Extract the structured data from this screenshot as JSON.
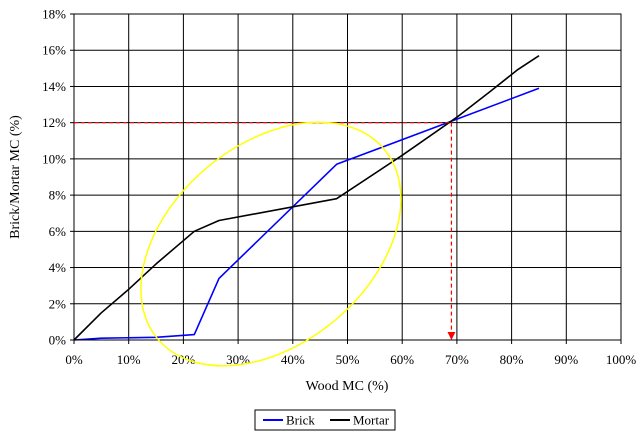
{
  "chart_data": {
    "type": "line",
    "xlabel": "Wood MC (%)",
    "ylabel": "Brick/Mortar MC (%)",
    "xlim": [
      0,
      100
    ],
    "ylim": [
      0,
      18
    ],
    "x_ticks": [
      0,
      10,
      20,
      30,
      40,
      50,
      60,
      70,
      80,
      90,
      100
    ],
    "y_ticks": [
      0,
      2,
      4,
      6,
      8,
      10,
      12,
      14,
      16,
      18
    ],
    "x_tick_labels": [
      "0%",
      "10%",
      "20%",
      "30%",
      "40%",
      "50%",
      "60%",
      "70%",
      "80%",
      "90%",
      "100%"
    ],
    "y_tick_labels": [
      "0%",
      "2%",
      "4%",
      "6%",
      "8%",
      "10%",
      "12%",
      "14%",
      "16%",
      "18%"
    ],
    "grid": true,
    "legend_position": "bottom-center",
    "series": [
      {
        "name": "Brick",
        "color": "#0000ff",
        "x": [
          0,
          5,
          15,
          22,
          26.5,
          48,
          85
        ],
        "y": [
          0,
          0.1,
          0.15,
          0.3,
          3.4,
          9.7,
          13.9
        ]
      },
      {
        "name": "Mortar",
        "color": "#000000",
        "x": [
          0,
          5,
          10,
          15,
          22,
          26.5,
          48,
          60,
          70,
          76,
          81,
          85
        ],
        "y": [
          0,
          1.5,
          2.8,
          4.2,
          6.0,
          6.6,
          7.8,
          10.2,
          12.3,
          13.7,
          14.9,
          15.7
        ]
      }
    ],
    "annotations": {
      "reference_color": "#ff0000",
      "reference_h": {
        "x0": 0,
        "x1": 69,
        "y": 12
      },
      "reference_v": {
        "x": 69,
        "y0": 12,
        "y1": 0
      },
      "highlight": {
        "shape": "ellipse",
        "color": "#ffff00",
        "cx": 36,
        "cy": 5.3,
        "rx": 27,
        "ry": 5.5,
        "rotate": -40
      }
    }
  }
}
